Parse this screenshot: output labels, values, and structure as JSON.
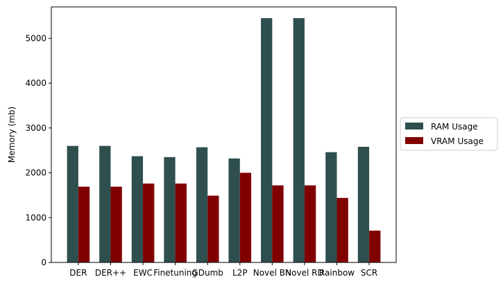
{
  "chart_data": {
    "type": "bar",
    "categories": [
      "DER",
      "DER++",
      "EWC",
      "Finetuning",
      "GDumb",
      "L2P",
      "Novel BN",
      "Novel RD",
      "Rainbow",
      "SCR"
    ],
    "series": [
      {
        "name": "RAM Usage",
        "color": "#2f4f4f",
        "values": [
          2600,
          2600,
          2370,
          2350,
          2570,
          2320,
          5450,
          5450,
          2460,
          2580
        ]
      },
      {
        "name": "VRAM Usage",
        "color": "#800000",
        "values": [
          1690,
          1690,
          1760,
          1760,
          1490,
          2000,
          1720,
          1720,
          1440,
          710
        ]
      }
    ],
    "ylabel": "Memory (mb)",
    "ylim": [
      0,
      5700
    ],
    "yticks": [
      0,
      1000,
      2000,
      3000,
      4000,
      5000
    ],
    "grid": false,
    "legend": "center-right, outside plot"
  }
}
